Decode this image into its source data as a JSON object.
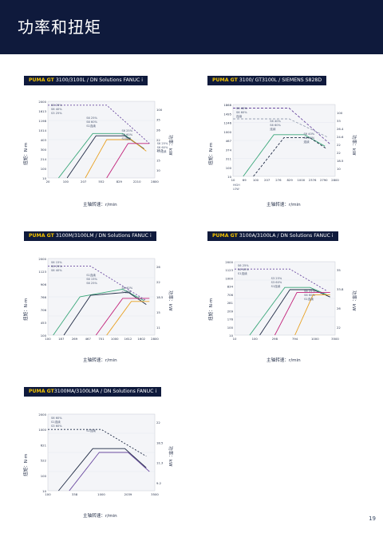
{
  "page": {
    "title": "功率和扭矩",
    "page_number": "19"
  },
  "colors": {
    "navy": "#0f1a3c",
    "brand": "#f2c200",
    "green": "#3aa77a",
    "black": "#1f2a44",
    "orange": "#e8a020",
    "magenta": "#c2227a",
    "purple": "#6b4aa0",
    "gray": "#9aa3b5"
  },
  "axis_labels": {
    "torque": "扭矩：N·m",
    "power": "功率：kW",
    "speed": "主轴转速：r/min"
  },
  "panels": [
    {
      "brand": "PUMA GT",
      "model": " 3100/3100L / DN Solutions FANUC i",
      "yticks_torque": [
        "2000",
        "1613",
        "1198",
        "1014",
        "403",
        "300",
        "214",
        "100",
        "10"
      ],
      "yticks_power": [
        "100",
        "35",
        "26",
        "22",
        "18.5",
        "15",
        "10"
      ],
      "xticks": [
        "20",
        "100",
        "207",
        "552",
        "829",
        "2210",
        "2800"
      ],
      "annotations": [
        "S6 25%",
        "S6 40%",
        "S3 25%",
        "S6 25%",
        "S6 60%",
        "S1连续",
        "S6 25%",
        "S6 60%",
        "S1连续",
        "S6 25%",
        "S6 60%",
        "S1连续"
      ],
      "legend": []
    },
    {
      "brand": "PUMA GT",
      "model": " 3100/ GT3100L / SIEMENS S828D",
      "yticks_torque": [
        "1868",
        "1495",
        "1246",
        "1000",
        "467",
        "374",
        "311",
        "100",
        "10"
      ],
      "yticks_power": [
        "100",
        "33",
        "26.4",
        "24.6",
        "22",
        "22",
        "18.5",
        "10"
      ],
      "xticks": [
        "10",
        "69",
        "100",
        "207",
        "276",
        "829",
        "1000",
        "2376",
        "2790",
        "2800"
      ],
      "annotations": [
        "S6 40%",
        "S6 60%",
        "连续",
        "S6 40%",
        "S6 60%",
        "连续",
        "S6 40%",
        "S6 60%",
        "连续"
      ],
      "legend": [
        "HIGH",
        "LOW"
      ]
    },
    {
      "brand": "PUMA GT",
      "model": " 3100M/3100LM / DN Solutions FANUC i",
      "yticks_torque": [
        "2000",
        "1123",
        "906",
        "766",
        "706",
        "453",
        "100"
      ],
      "yticks_power": [
        "26",
        "22",
        "18.5",
        "15",
        "11"
      ],
      "xticks": [
        "100",
        "187",
        "269",
        "467",
        "701",
        "1000",
        "1612",
        "1602",
        "2800"
      ],
      "annotations": [
        "S6 15%",
        "S6 25%",
        "S6 40%",
        "S1连续",
        "S6 15%",
        "S6 25%",
        "S6 40%",
        "S1连续"
      ],
      "legend": []
    },
    {
      "brand": "PUMA GT",
      "model": " 3100A/3100LA / DN Solutions FANUC i",
      "yticks_torque": [
        "2000",
        "1123",
        "1000",
        "834",
        "706",
        "281",
        "209",
        "176",
        "100",
        "10"
      ],
      "yticks_power": [
        "35",
        "33.8",
        "26",
        "22"
      ],
      "xticks": [
        "10",
        "100",
        "298",
        "794",
        "1000",
        "3500"
      ],
      "annotations": [
        "S6 25%",
        "S6 60%",
        "S1连续",
        "S3 25%",
        "S3 60%",
        "S1连续",
        "S6 25%",
        "S6 60%",
        "S1连续"
      ],
      "legend": []
    },
    {
      "brand": "PUMA GT",
      "model": "3100MA/3100LMA / DN Solutions FANUC i",
      "yticks_torque": [
        "2000",
        "1000",
        "621",
        "522",
        "100",
        "10"
      ],
      "yticks_power": [
        "22",
        "18.5",
        "11.3",
        "9.2"
      ],
      "xticks": [
        "100",
        "338",
        "1000",
        "2039",
        "3500"
      ],
      "annotations": [
        "S6 60%",
        "S1连续",
        "S3 60%",
        "S1连续"
      ],
      "legend": []
    }
  ]
}
